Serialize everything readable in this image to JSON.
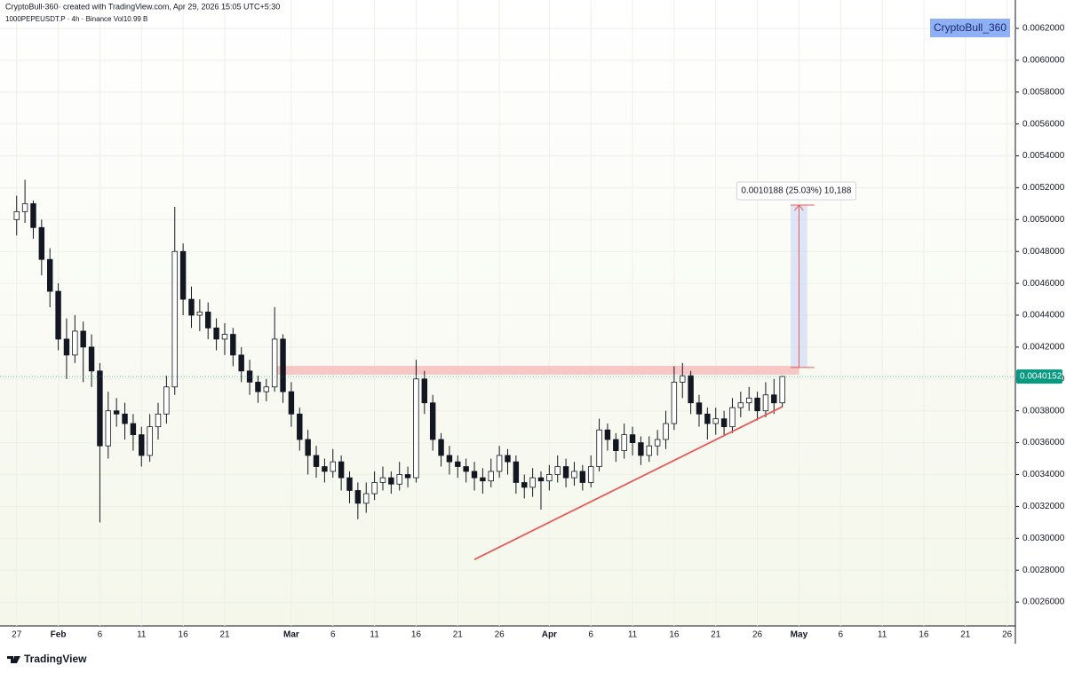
{
  "chart_data": {
    "type": "candlestick",
    "title": "CryptoBull-360· created with TradingView.com, Apr 29, 2026 15:05 UTC+5:30",
    "subtitle": "1000PEPEUSDT.P · 4h · Binance  Vol10.99 B",
    "watermark": "CryptoBull_360",
    "x": [
      "Jan 27",
      "Jan 28",
      "Jan 29",
      "Jan 30",
      "Jan 31",
      "Feb 1",
      "Feb 2",
      "Feb 3",
      "Feb 4",
      "Feb 5",
      "Feb 6",
      "Feb 7",
      "Feb 8",
      "Feb 9",
      "Feb 10",
      "Feb 11",
      "Feb 12",
      "Feb 13",
      "Feb 14",
      "Feb 15",
      "Feb 16",
      "Feb 17",
      "Feb 18",
      "Feb 19",
      "Feb 20",
      "Feb 21",
      "Feb 22",
      "Feb 23",
      "Feb 24",
      "Feb 25",
      "Feb 26",
      "Feb 27",
      "Feb 28",
      "Mar 1",
      "Mar 2",
      "Mar 3",
      "Mar 4",
      "Mar 5",
      "Mar 6",
      "Mar 7",
      "Mar 8",
      "Mar 9",
      "Mar 10",
      "Mar 11",
      "Mar 12",
      "Mar 13",
      "Mar 14",
      "Mar 15",
      "Mar 16",
      "Mar 17",
      "Mar 18",
      "Mar 19",
      "Mar 20",
      "Mar 21",
      "Mar 22",
      "Mar 23",
      "Mar 24",
      "Mar 25",
      "Mar 26",
      "Mar 27",
      "Mar 28",
      "Mar 29",
      "Mar 30",
      "Mar 31",
      "Apr 1",
      "Apr 2",
      "Apr 3",
      "Apr 4",
      "Apr 5",
      "Apr 6",
      "Apr 7",
      "Apr 8",
      "Apr 9",
      "Apr 10",
      "Apr 11",
      "Apr 12",
      "Apr 13",
      "Apr 14",
      "Apr 15",
      "Apr 16",
      "Apr 17",
      "Apr 18",
      "Apr 19",
      "Apr 20",
      "Apr 21",
      "Apr 22",
      "Apr 23",
      "Apr 24",
      "Apr 25",
      "Apr 26",
      "Apr 27",
      "Apr 28",
      "Apr 29"
    ],
    "open": [
      0.005,
      0.00505,
      0.0051,
      0.00495,
      0.00475,
      0.00455,
      0.00425,
      0.00415,
      0.0043,
      0.0042,
      0.00405,
      0.00358,
      0.0038,
      0.00378,
      0.00372,
      0.00365,
      0.00352,
      0.0037,
      0.00378,
      0.00395,
      0.0048,
      0.0045,
      0.0044,
      0.00442,
      0.00432,
      0.00425,
      0.00428,
      0.00415,
      0.00405,
      0.00398,
      0.00392,
      0.00395,
      0.00425,
      0.00392,
      0.00378,
      0.00362,
      0.00352,
      0.00345,
      0.00342,
      0.00348,
      0.00338,
      0.0033,
      0.00322,
      0.00328,
      0.00335,
      0.00338,
      0.00334,
      0.0034,
      0.00338,
      0.004,
      0.00385,
      0.00362,
      0.00352,
      0.00348,
      0.00345,
      0.00342,
      0.00338,
      0.00336,
      0.00342,
      0.00352,
      0.00348,
      0.00335,
      0.00332,
      0.00338,
      0.00336,
      0.0034,
      0.00345,
      0.00338,
      0.00342,
      0.00335,
      0.00345,
      0.00368,
      0.00362,
      0.00355,
      0.00365,
      0.0036,
      0.00352,
      0.00358,
      0.00362,
      0.00372,
      0.00398,
      0.00402,
      0.00385,
      0.00378,
      0.00372,
      0.00375,
      0.0037,
      0.00382,
      0.00385,
      0.00388,
      0.0038,
      0.0039,
      0.00385
    ],
    "high": [
      0.00515,
      0.00525,
      0.00512,
      0.005,
      0.00482,
      0.0046,
      0.00438,
      0.0044,
      0.00436,
      0.00428,
      0.0041,
      0.00392,
      0.00388,
      0.00385,
      0.00378,
      0.0037,
      0.00378,
      0.00385,
      0.00402,
      0.00508,
      0.00485,
      0.00458,
      0.0045,
      0.00448,
      0.00438,
      0.00435,
      0.00432,
      0.0042,
      0.00412,
      0.00402,
      0.004,
      0.00445,
      0.00428,
      0.00398,
      0.00382,
      0.00368,
      0.00358,
      0.0035,
      0.00356,
      0.00352,
      0.00342,
      0.00335,
      0.00335,
      0.00342,
      0.00345,
      0.00342,
      0.00348,
      0.00345,
      0.00412,
      0.00405,
      0.0039,
      0.00366,
      0.00358,
      0.00352,
      0.0035,
      0.00348,
      0.00344,
      0.0035,
      0.00358,
      0.00356,
      0.00352,
      0.0034,
      0.00344,
      0.00342,
      0.00346,
      0.00352,
      0.0035,
      0.00348,
      0.00346,
      0.00352,
      0.00375,
      0.00372,
      0.00366,
      0.00372,
      0.0037,
      0.00364,
      0.00364,
      0.00368,
      0.0038,
      0.00408,
      0.0041,
      0.00405,
      0.0039,
      0.00382,
      0.00382,
      0.0038,
      0.00388,
      0.00392,
      0.00395,
      0.00392,
      0.00398,
      0.004,
      0.00402
    ],
    "low": [
      0.0049,
      0.00498,
      0.00488,
      0.00465,
      0.00445,
      0.00418,
      0.004,
      0.0041,
      0.00398,
      0.00395,
      0.0031,
      0.0035,
      0.0037,
      0.00362,
      0.00355,
      0.00345,
      0.00348,
      0.00362,
      0.00372,
      0.0039,
      0.0044,
      0.00432,
      0.0043,
      0.00425,
      0.00418,
      0.00415,
      0.00408,
      0.00398,
      0.0039,
      0.00385,
      0.00386,
      0.00392,
      0.00385,
      0.0037,
      0.00355,
      0.0034,
      0.00338,
      0.00335,
      0.00338,
      0.0033,
      0.00322,
      0.00312,
      0.00316,
      0.00324,
      0.0033,
      0.00328,
      0.0033,
      0.00332,
      0.00335,
      0.00378,
      0.00355,
      0.00345,
      0.0034,
      0.00338,
      0.00335,
      0.0033,
      0.00328,
      0.00332,
      0.00338,
      0.0034,
      0.00328,
      0.00325,
      0.00326,
      0.00318,
      0.0033,
      0.00335,
      0.00332,
      0.00333,
      0.0033,
      0.00332,
      0.00342,
      0.00355,
      0.00348,
      0.0035,
      0.00352,
      0.00346,
      0.00348,
      0.00352,
      0.00356,
      0.00368,
      0.00388,
      0.00378,
      0.0037,
      0.00362,
      0.00365,
      0.00364,
      0.00366,
      0.00376,
      0.0038,
      0.00374,
      0.00376,
      0.00378,
      0.00382
    ],
    "close": [
      0.00505,
      0.0051,
      0.00495,
      0.00475,
      0.00455,
      0.00425,
      0.00415,
      0.0043,
      0.0042,
      0.00405,
      0.00358,
      0.0038,
      0.00378,
      0.00372,
      0.00365,
      0.00352,
      0.0037,
      0.00378,
      0.00395,
      0.0048,
      0.0045,
      0.0044,
      0.00442,
      0.00432,
      0.00425,
      0.00428,
      0.00415,
      0.00405,
      0.00398,
      0.00392,
      0.00395,
      0.00425,
      0.00392,
      0.00378,
      0.00362,
      0.00352,
      0.00345,
      0.00342,
      0.00348,
      0.00338,
      0.0033,
      0.00322,
      0.00328,
      0.00335,
      0.00338,
      0.00334,
      0.0034,
      0.00338,
      0.004,
      0.00385,
      0.00362,
      0.00352,
      0.00348,
      0.00345,
      0.00342,
      0.00338,
      0.00336,
      0.00342,
      0.00352,
      0.00348,
      0.00335,
      0.00332,
      0.00338,
      0.00336,
      0.0034,
      0.00345,
      0.00338,
      0.00342,
      0.00335,
      0.00345,
      0.00368,
      0.00362,
      0.00355,
      0.00365,
      0.0036,
      0.00352,
      0.00358,
      0.00362,
      0.00372,
      0.00398,
      0.00402,
      0.00385,
      0.00378,
      0.00372,
      0.00375,
      0.0037,
      0.00382,
      0.00385,
      0.00388,
      0.0038,
      0.0039,
      0.00385,
      0.0040152
    ],
    "up_color": "#ffffff",
    "down_color": "#131722",
    "last_price": {
      "value": 0.0040152,
      "label": "0.0040152",
      "color": "#089981"
    },
    "xlim": [
      "Jan 25",
      "May 27"
    ],
    "ylim": [
      0.00245,
      0.006378
    ],
    "yticks": [
      {
        "value": 0.0026,
        "label": "0.0026000"
      },
      {
        "value": 0.0028,
        "label": "0.0028000"
      },
      {
        "value": 0.003,
        "label": "0.0030000"
      },
      {
        "value": 0.0032,
        "label": "0.0032000"
      },
      {
        "value": 0.0034,
        "label": "0.0034000"
      },
      {
        "value": 0.0036,
        "label": "0.0036000"
      },
      {
        "value": 0.0038,
        "label": "0.0038000"
      },
      {
        "value": 0.004,
        "label": "0.0040000"
      },
      {
        "value": 0.0042,
        "label": "0.0042000"
      },
      {
        "value": 0.0044,
        "label": "0.0044000"
      },
      {
        "value": 0.0046,
        "label": "0.0046000"
      },
      {
        "value": 0.0048,
        "label": "0.0048000"
      },
      {
        "value": 0.005,
        "label": "0.0050000"
      },
      {
        "value": 0.0052,
        "label": "0.0052000"
      },
      {
        "value": 0.0054,
        "label": "0.0054000"
      },
      {
        "value": 0.0056,
        "label": "0.0056000"
      },
      {
        "value": 0.0058,
        "label": "0.0058000"
      },
      {
        "value": 0.006,
        "label": "0.0060000"
      },
      {
        "value": 0.0062,
        "label": "0.0062000"
      }
    ],
    "xticks": [
      {
        "value": "Jan 27",
        "label": "27"
      },
      {
        "value": "Feb 1",
        "label": "Feb"
      },
      {
        "value": "Feb 6",
        "label": "6"
      },
      {
        "value": "Feb 11",
        "label": "11"
      },
      {
        "value": "Feb 16",
        "label": "16"
      },
      {
        "value": "Feb 21",
        "label": "21"
      },
      {
        "value": "Mar 1",
        "label": "Mar"
      },
      {
        "value": "Mar 6",
        "label": "6"
      },
      {
        "value": "Mar 11",
        "label": "11"
      },
      {
        "value": "Mar 16",
        "label": "16"
      },
      {
        "value": "Mar 21",
        "label": "21"
      },
      {
        "value": "Mar 26",
        "label": "26"
      },
      {
        "value": "Apr 1",
        "label": "Apr"
      },
      {
        "value": "Apr 6",
        "label": "6"
      },
      {
        "value": "Apr 11",
        "label": "11"
      },
      {
        "value": "Apr 16",
        "label": "16"
      },
      {
        "value": "Apr 21",
        "label": "21"
      },
      {
        "value": "Apr 26",
        "label": "26"
      },
      {
        "value": "May 1",
        "label": "May"
      },
      {
        "value": "May 6",
        "label": "6"
      },
      {
        "value": "May 11",
        "label": "11"
      },
      {
        "value": "May 16",
        "label": "16"
      },
      {
        "value": "May 21",
        "label": "21"
      },
      {
        "value": "May 26",
        "label": "26"
      }
    ],
    "grid": true,
    "annotations": {
      "zone": {
        "x0": "Feb 27",
        "x1": "May 1",
        "y0": 0.004027,
        "y1": 0.004082,
        "color": "#f5b5b5"
      },
      "trendline": {
        "x0": "Mar 23",
        "y0": 0.002867,
        "x1": "Apr 29",
        "y1": 0.003826,
        "color": "#e85a5a"
      },
      "measure": {
        "x0": "Apr 30",
        "x1": "May 2",
        "from": 0.004072,
        "to": 0.0050908,
        "label": "0.0010188 (25.03%) 10,188",
        "color": "#c9d6f5"
      }
    }
  },
  "footer": {
    "logo_text": "TradingView"
  }
}
